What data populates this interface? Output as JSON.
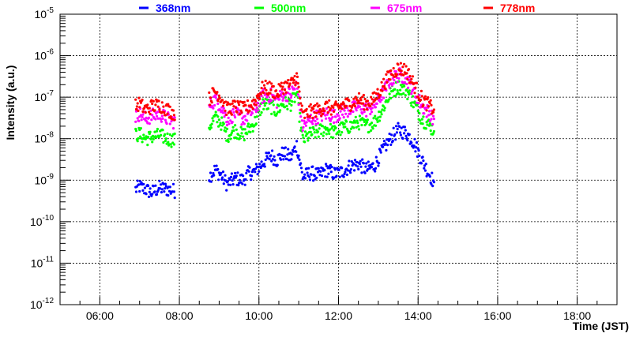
{
  "chart_data": {
    "type": "scatter",
    "title": "",
    "xlabel": "Time (JST)",
    "ylabel": "Intensity (a.u.)",
    "x_unit": "hour (JST)",
    "x_range": [
      5.0,
      19.0
    ],
    "x_ticks": [
      {
        "value": 6,
        "label": "06:00"
      },
      {
        "value": 8,
        "label": "08:00"
      },
      {
        "value": 10,
        "label": "10:00"
      },
      {
        "value": 12,
        "label": "12:00"
      },
      {
        "value": 14,
        "label": "14:00"
      },
      {
        "value": 16,
        "label": "16:00"
      },
      {
        "value": 18,
        "label": "18:00"
      }
    ],
    "y_scale": "log",
    "y_range": [
      1e-12,
      1e-05
    ],
    "y_ticks": [
      {
        "exp": -12,
        "base": "10",
        "sup": "-12"
      },
      {
        "exp": -11,
        "base": "10",
        "sup": "-11"
      },
      {
        "exp": -10,
        "base": "10",
        "sup": "-10"
      },
      {
        "exp": -9,
        "base": "10",
        "sup": "-9"
      },
      {
        "exp": -8,
        "base": "10",
        "sup": "-8"
      },
      {
        "exp": -7,
        "base": "10",
        "sup": "-7"
      },
      {
        "exp": -6,
        "base": "10",
        "sup": "-6"
      },
      {
        "exp": -5,
        "base": "10",
        "sup": "-5"
      }
    ],
    "grid": true,
    "legend_position": "top",
    "series": [
      {
        "name": "368nm",
        "color": "#0000ff",
        "points": [
          [
            6.9,
            6e-10
          ],
          [
            7.0,
            7e-10
          ],
          [
            7.15,
            6e-10
          ],
          [
            7.3,
            5e-10
          ],
          [
            7.5,
            6.5e-10
          ],
          [
            7.7,
            6e-10
          ],
          [
            7.9,
            5.5e-10
          ],
          [
            8.75,
            1.2e-09
          ],
          [
            8.9,
            1.8e-09
          ],
          [
            9.05,
            1.3e-09
          ],
          [
            9.2,
            8e-10
          ],
          [
            9.4,
            1.1e-09
          ],
          [
            9.6,
            1e-09
          ],
          [
            9.75,
            1.5e-09
          ],
          [
            9.9,
            1.6e-09
          ],
          [
            10.1,
            2.6e-09
          ],
          [
            10.3,
            4e-09
          ],
          [
            10.45,
            3e-09
          ],
          [
            10.6,
            4.5e-09
          ],
          [
            10.8,
            3.5e-09
          ],
          [
            10.95,
            7e-09
          ],
          [
            11.1,
            1.2e-09
          ],
          [
            11.3,
            1.5e-09
          ],
          [
            11.5,
            1.3e-09
          ],
          [
            11.7,
            1.8e-09
          ],
          [
            11.9,
            1.4e-09
          ],
          [
            12.1,
            1.6e-09
          ],
          [
            12.3,
            2.2e-09
          ],
          [
            12.5,
            2.5e-09
          ],
          [
            12.7,
            1.8e-09
          ],
          [
            12.9,
            2.2e-09
          ],
          [
            13.1,
            5e-09
          ],
          [
            13.3,
            1e-08
          ],
          [
            13.5,
            1.6e-08
          ],
          [
            13.7,
            1.4e-08
          ],
          [
            13.9,
            8e-09
          ],
          [
            14.1,
            3e-09
          ],
          [
            14.3,
            1.3e-09
          ],
          [
            14.4,
            9e-10
          ]
        ]
      },
      {
        "name": "500nm",
        "color": "#00ff00",
        "points": [
          [
            6.9,
            1.2e-08
          ],
          [
            7.0,
            1.3e-08
          ],
          [
            7.15,
            1e-08
          ],
          [
            7.3,
            1.1e-08
          ],
          [
            7.5,
            1.2e-08
          ],
          [
            7.7,
            1e-08
          ],
          [
            7.9,
            9e-09
          ],
          [
            8.75,
            2e-08
          ],
          [
            8.9,
            3.2e-08
          ],
          [
            9.05,
            2.4e-08
          ],
          [
            9.2,
            1.2e-08
          ],
          [
            9.4,
            1.6e-08
          ],
          [
            9.6,
            1.2e-08
          ],
          [
            9.75,
            1.7e-08
          ],
          [
            9.9,
            2.5e-08
          ],
          [
            10.1,
            7e-08
          ],
          [
            10.3,
            6e-08
          ],
          [
            10.45,
            4.5e-08
          ],
          [
            10.6,
            7e-08
          ],
          [
            10.8,
            7e-08
          ],
          [
            10.95,
            1.2e-07
          ],
          [
            11.1,
            9e-09
          ],
          [
            11.3,
            1.3e-08
          ],
          [
            11.5,
            1.5e-08
          ],
          [
            11.7,
            1.8e-08
          ],
          [
            11.9,
            1.4e-08
          ],
          [
            12.1,
            1.8e-08
          ],
          [
            12.3,
            2e-08
          ],
          [
            12.5,
            2.5e-08
          ],
          [
            12.7,
            2e-08
          ],
          [
            12.9,
            2.5e-08
          ],
          [
            13.1,
            5e-08
          ],
          [
            13.3,
            1.2e-07
          ],
          [
            13.5,
            1.8e-07
          ],
          [
            13.7,
            1.5e-07
          ],
          [
            13.9,
            7e-08
          ],
          [
            14.1,
            3e-08
          ],
          [
            14.3,
            2e-08
          ],
          [
            14.4,
            1.5e-08
          ]
        ]
      },
      {
        "name": "675nm",
        "color": "#ff00ff",
        "points": [
          [
            6.9,
            3.5e-08
          ],
          [
            7.0,
            4e-08
          ],
          [
            7.15,
            3e-08
          ],
          [
            7.3,
            3.5e-08
          ],
          [
            7.5,
            4e-08
          ],
          [
            7.7,
            3e-08
          ],
          [
            7.9,
            2.5e-08
          ],
          [
            8.75,
            6e-08
          ],
          [
            8.9,
            9e-08
          ],
          [
            9.05,
            6e-08
          ],
          [
            9.2,
            3e-08
          ],
          [
            9.4,
            4e-08
          ],
          [
            9.6,
            3e-08
          ],
          [
            9.75,
            4e-08
          ],
          [
            9.9,
            5e-08
          ],
          [
            10.1,
            1.1e-07
          ],
          [
            10.3,
            1.1e-07
          ],
          [
            10.45,
            8e-08
          ],
          [
            10.6,
            1.2e-07
          ],
          [
            10.8,
            1.2e-07
          ],
          [
            10.95,
            2e-07
          ],
          [
            11.1,
            2e-08
          ],
          [
            11.3,
            3e-08
          ],
          [
            11.5,
            3.5e-08
          ],
          [
            11.7,
            4e-08
          ],
          [
            11.9,
            3.5e-08
          ],
          [
            12.1,
            4.5e-08
          ],
          [
            12.3,
            5e-08
          ],
          [
            12.5,
            6e-08
          ],
          [
            12.7,
            5e-08
          ],
          [
            12.9,
            6e-08
          ],
          [
            13.1,
            1.2e-07
          ],
          [
            13.3,
            2.5e-07
          ],
          [
            13.5,
            3.5e-07
          ],
          [
            13.7,
            3e-07
          ],
          [
            13.9,
            1.4e-07
          ],
          [
            14.1,
            6e-08
          ],
          [
            14.3,
            4e-08
          ],
          [
            14.4,
            3e-08
          ]
        ]
      },
      {
        "name": "778nm",
        "color": "#ff0000",
        "points": [
          [
            6.9,
            6e-08
          ],
          [
            7.0,
            7e-08
          ],
          [
            7.15,
            5e-08
          ],
          [
            7.3,
            6e-08
          ],
          [
            7.5,
            6.5e-08
          ],
          [
            7.7,
            5e-08
          ],
          [
            7.9,
            4e-08
          ],
          [
            8.75,
            9e-08
          ],
          [
            8.9,
            1.4e-07
          ],
          [
            9.05,
            1e-07
          ],
          [
            9.2,
            5e-08
          ],
          [
            9.4,
            6e-08
          ],
          [
            9.6,
            5e-08
          ],
          [
            9.75,
            6e-08
          ],
          [
            9.9,
            8e-08
          ],
          [
            10.1,
            1.7e-07
          ],
          [
            10.3,
            1.6e-07
          ],
          [
            10.45,
            1.2e-07
          ],
          [
            10.6,
            1.8e-07
          ],
          [
            10.8,
            2e-07
          ],
          [
            10.95,
            3.2e-07
          ],
          [
            11.1,
            3.5e-08
          ],
          [
            11.3,
            4.5e-08
          ],
          [
            11.5,
            5e-08
          ],
          [
            11.7,
            6e-08
          ],
          [
            11.9,
            5e-08
          ],
          [
            12.1,
            6.5e-08
          ],
          [
            12.3,
            7e-08
          ],
          [
            12.5,
            9e-08
          ],
          [
            12.7,
            7e-08
          ],
          [
            12.9,
            9e-08
          ],
          [
            13.1,
            1.8e-07
          ],
          [
            13.3,
            3.5e-07
          ],
          [
            13.5,
            5e-07
          ],
          [
            13.7,
            4.5e-07
          ],
          [
            13.9,
            2e-07
          ],
          [
            14.1,
            9e-08
          ],
          [
            14.3,
            6e-08
          ],
          [
            14.4,
            5e-08
          ]
        ]
      }
    ]
  }
}
